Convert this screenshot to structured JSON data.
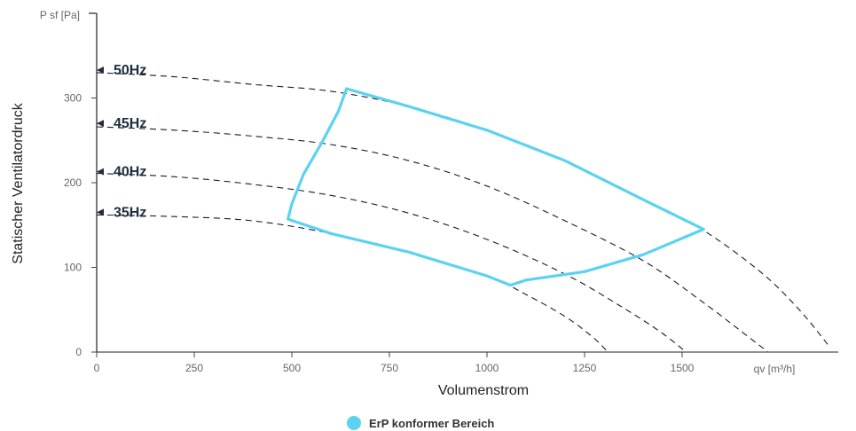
{
  "chart_data": {
    "type": "line",
    "title": "",
    "xlabel": "Volumenstrom",
    "ylabel": "Statischer Ventilatordruck",
    "x_unit_label": "qv [m³/h]",
    "y_unit_label": "P sf [Pa]",
    "xlim": [
      0,
      1900
    ],
    "ylim": [
      0,
      400
    ],
    "x_ticks": [
      0,
      250,
      500,
      750,
      1000,
      1250,
      1500
    ],
    "y_ticks": [
      0,
      100,
      200,
      300
    ],
    "grid": false,
    "legend_position": "bottom-center",
    "series": [
      {
        "name": "50Hz",
        "style": "dashed",
        "color": "#1a1a2e",
        "x": [
          0,
          200,
          400,
          600,
          800,
          1000,
          1200,
          1400,
          1550,
          1700,
          1800,
          1880
        ],
        "y": [
          330,
          325,
          316,
          308,
          290,
          262,
          226,
          180,
          145,
          95,
          50,
          5
        ]
      },
      {
        "name": "45Hz",
        "style": "dashed",
        "color": "#1a1a2e",
        "x": [
          0,
          200,
          400,
          600,
          800,
          1000,
          1200,
          1400,
          1550,
          1650,
          1720
        ],
        "y": [
          266,
          262,
          255,
          245,
          226,
          196,
          155,
          108,
          60,
          25,
          0
        ]
      },
      {
        "name": "40Hz",
        "style": "dashed",
        "color": "#1a1a2e",
        "x": [
          0,
          200,
          400,
          600,
          800,
          1000,
          1200,
          1350,
          1450,
          1510
        ],
        "y": [
          211,
          207,
          198,
          185,
          164,
          133,
          92,
          52,
          22,
          0
        ]
      },
      {
        "name": "35Hz",
        "style": "dashed",
        "color": "#1a1a2e",
        "x": [
          0,
          200,
          400,
          600,
          800,
          1000,
          1100,
          1200,
          1270,
          1310
        ],
        "y": [
          162,
          160,
          155,
          140,
          118,
          90,
          68,
          42,
          18,
          0
        ]
      }
    ],
    "region": {
      "name": "ErP konformer Bereich",
      "color": "#5bd3f0",
      "x": [
        640,
        800,
        1000,
        1200,
        1400,
        1555,
        1400,
        1250,
        1100,
        1060,
        1000,
        800,
        600,
        490,
        500,
        530,
        580,
        620,
        640
      ],
      "y": [
        311,
        290,
        262,
        226,
        180,
        145,
        115,
        95,
        85,
        79,
        90,
        118,
        140,
        157,
        175,
        210,
        250,
        285,
        311
      ]
    },
    "frequency_labels": [
      {
        "text": "50Hz",
        "y": 333
      },
      {
        "text": "45Hz",
        "y": 270
      },
      {
        "text": "40Hz",
        "y": 213
      },
      {
        "text": "35Hz",
        "y": 165
      }
    ]
  }
}
